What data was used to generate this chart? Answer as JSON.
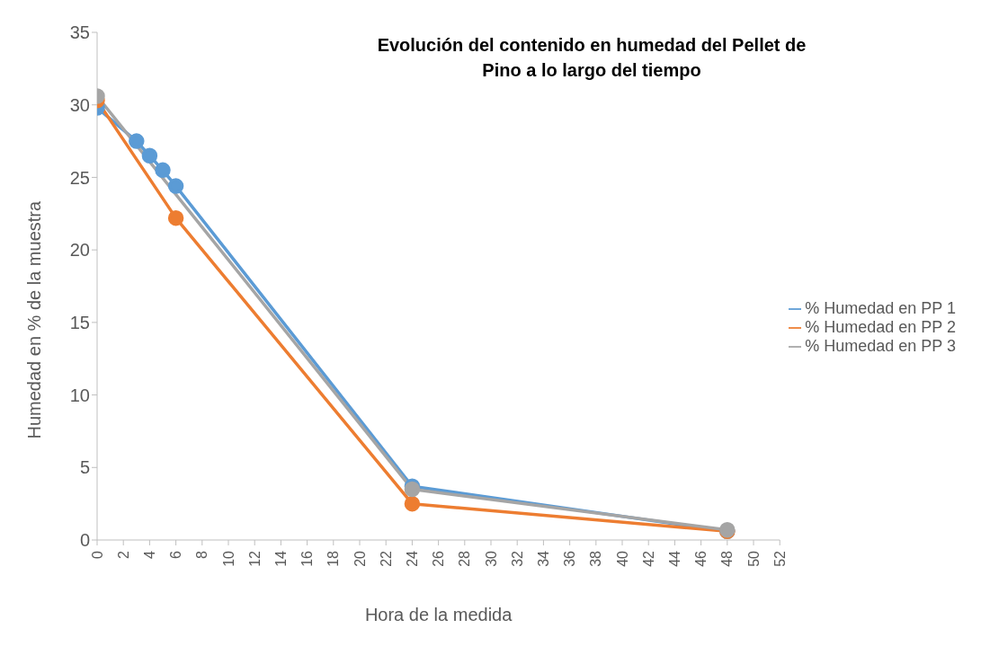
{
  "chart_data": {
    "type": "line",
    "title": "Evolución del contenido en humedad del Pellet de Pino a lo largo del tiempo",
    "xlabel": "Hora de la medida",
    "ylabel": "Humedad en % de la muestra",
    "series": [
      {
        "name": "% Humedad en PP 1",
        "color": "#5b9bd5",
        "x": [
          0,
          3,
          4,
          5,
          6,
          24,
          48
        ],
        "values": [
          29.8,
          27.5,
          26.5,
          25.5,
          24.4,
          3.7,
          0.6
        ]
      },
      {
        "name": "% Humedad en PP 2",
        "color": "#ed7d31",
        "x": [
          0,
          6,
          24,
          48
        ],
        "values": [
          30.3,
          22.2,
          2.5,
          0.6
        ]
      },
      {
        "name": "% Humedad en PP 3",
        "color": "#a5a5a5",
        "x": [
          0,
          24,
          48
        ],
        "values": [
          30.6,
          3.5,
          0.7
        ]
      }
    ],
    "xlim": [
      0,
      52
    ],
    "xticks": [
      0,
      2,
      4,
      6,
      8,
      10,
      12,
      14,
      16,
      18,
      20,
      22,
      24,
      26,
      28,
      30,
      32,
      34,
      36,
      38,
      40,
      42,
      44,
      46,
      48,
      50,
      52
    ],
    "ylim": [
      0,
      35
    ],
    "yticks": [
      0,
      5,
      10,
      15,
      20,
      25,
      30,
      35
    ],
    "grid": false,
    "legend": "right",
    "marker": "circle",
    "line_style": "solid"
  }
}
